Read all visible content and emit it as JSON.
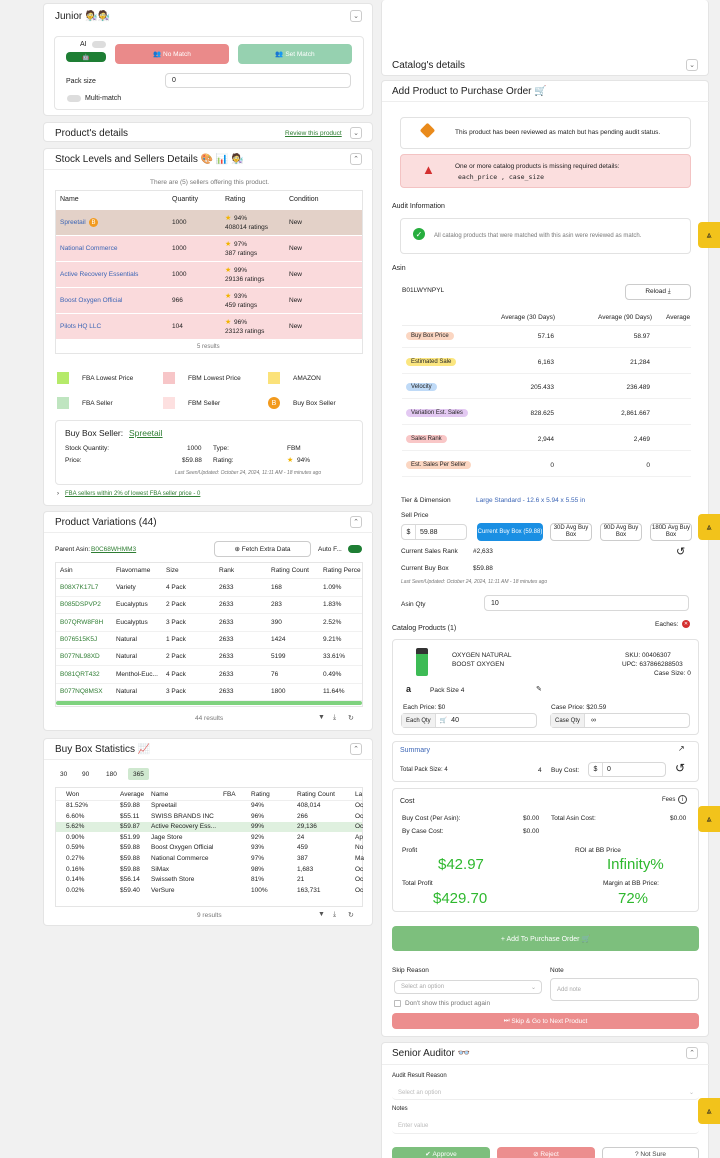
{
  "junior": {
    "title": "Junior 🧑‍🔬🧑‍🔬",
    "ai_label": "AI",
    "no_match": "No Match",
    "set_match": "Set Match",
    "pack_size_label": "Pack size",
    "pack_size_value": "0",
    "multi_match": "Multi-match"
  },
  "product_details": {
    "title": "Product's details",
    "review_link": "Review this product"
  },
  "stock": {
    "title": "Stock Levels and Sellers Details 🎨 📊 🧑‍🔬",
    "summary": "There are (5) sellers offering this product.",
    "headers": [
      "Name",
      "Quantity",
      "Rating",
      "Condition"
    ],
    "rows": [
      {
        "name": "Spreetail",
        "qty": "1000",
        "pct": "94%",
        "ratings": "408014 ratings",
        "cond": "New",
        "color": "#e3d1c8"
      },
      {
        "name": "National Commerce",
        "qty": "1000",
        "pct": "97%",
        "ratings": "387 ratings",
        "cond": "New",
        "color": "#fadadc"
      },
      {
        "name": "Active Recovery Essentials",
        "qty": "1000",
        "pct": "99%",
        "ratings": "29136 ratings",
        "cond": "New",
        "color": "#fadadc"
      },
      {
        "name": "Boost Oxygen Official",
        "qty": "966",
        "pct": "93%",
        "ratings": "459 ratings",
        "cond": "New",
        "color": "#fadadc"
      },
      {
        "name": "Pilots HQ LLC",
        "qty": "104",
        "pct": "96%",
        "ratings": "23123 ratings",
        "cond": "New",
        "color": "#fadadc"
      }
    ],
    "results": "5 results",
    "legend": [
      {
        "label": "FBA Lowest Price",
        "color": "#b5ea6a"
      },
      {
        "label": "FBM Lowest Price",
        "color": "#f7c6c8"
      },
      {
        "label": "AMAZON",
        "color": "#fbe27a"
      },
      {
        "label": "FBA Seller",
        "color": "#bfe5c0"
      },
      {
        "label": "FBM Seller",
        "color": "#fde0e0"
      },
      {
        "label": "Buy Box Seller",
        "color": "#f29a1e"
      }
    ],
    "buybox": {
      "label": "Buy Box Seller:",
      "seller": "Spreetail",
      "stock_label": "Stock Quantity:",
      "stock": "1000",
      "type_label": "Type:",
      "type": "FBM",
      "price_label": "Price:",
      "price": "$59.88",
      "rating_label": "Rating:",
      "rating": "94%",
      "last_seen": "Last Seen/Updated: October 24, 2024, 11:11 AM - 18 minutes ago"
    },
    "fba_link": "FBA sellers within 2% of lowest FBA seller price - 0"
  },
  "variations": {
    "title": "Product Variations (44)",
    "parent_label": "Parent Asin:",
    "parent": "B0C68WHMM3",
    "fetch": "Fetch Extra Data",
    "auto": "Auto F...",
    "headers": [
      "Asin",
      "Flavorname",
      "Size",
      "Rank",
      "Rating Count",
      "Rating Perce"
    ],
    "rows": [
      [
        "B08X7K17L7",
        "Variety",
        "4 Pack",
        "2633",
        "168",
        "1.09%"
      ],
      [
        "B085DSPVP2",
        "Eucalyptus",
        "2 Pack",
        "2633",
        "283",
        "1.83%"
      ],
      [
        "B07QRW8F8H",
        "Eucalyptus",
        "3 Pack",
        "2633",
        "390",
        "2.52%"
      ],
      [
        "B076515K5J",
        "Natural",
        "1 Pack",
        "2633",
        "1424",
        "9.21%"
      ],
      [
        "B077NL98XD",
        "Natural",
        "2 Pack",
        "2633",
        "5199",
        "33.61%"
      ],
      [
        "B081QRT432",
        "Menthol-Euc...",
        "4 Pack",
        "2633",
        "76",
        "0.49%"
      ],
      [
        "B077NQ8MSX",
        "Natural",
        "3 Pack",
        "2633",
        "1800",
        "11.64%"
      ]
    ],
    "results": "44 results"
  },
  "buybox_stats": {
    "title": "Buy Box Statistics 📈",
    "tabs": [
      "30",
      "90",
      "180",
      "365"
    ],
    "headers": [
      "Won",
      "Average",
      "Name",
      "FBA",
      "Rating",
      "Rating Count",
      "La"
    ],
    "rows": [
      [
        "81.52%",
        "$59.88",
        "Spreetail",
        "",
        "94%",
        "408,014",
        "Oc"
      ],
      [
        "6.60%",
        "$55.11",
        "SWISS BRANDS INC",
        "",
        "96%",
        "266",
        "Oc"
      ],
      [
        "5.62%",
        "$59.87",
        "Active Recovery Ess...",
        "",
        "99%",
        "29,136",
        "Oc"
      ],
      [
        "0.90%",
        "$51.99",
        "Jage Store",
        "",
        "92%",
        "24",
        "Ap"
      ],
      [
        "0.59%",
        "$59.88",
        "Boost Oxygen Official",
        "",
        "93%",
        "459",
        "No"
      ],
      [
        "0.27%",
        "$59.88",
        "National Commerce",
        "",
        "97%",
        "387",
        "Ma"
      ],
      [
        "0.16%",
        "$59.88",
        "SiMax",
        "",
        "98%",
        "1,683",
        "Oc"
      ],
      [
        "0.14%",
        "$56.14",
        "Swisseth Store",
        "",
        "81%",
        "21",
        "Oc"
      ],
      [
        "0.02%",
        "$59.40",
        "VerSure",
        "",
        "100%",
        "163,731",
        "Oc"
      ]
    ],
    "results": "9 results"
  },
  "catalog": {
    "title": "Catalog's details"
  },
  "add": {
    "title": "Add Product to Purchase Order 🛒",
    "warn1": "This product has been reviewed as match but has pending audit status.",
    "warn2": "One or more catalog products is missing required details:",
    "warn2_fields": "each_price , case_size",
    "audit_label": "Audit Information",
    "audit_text": "All catalog products that were matched with this asin were reviewed as match.",
    "asin_label": "Asin",
    "asin": "B01LWYNPYL",
    "reload": "Reload ⤓",
    "metrics_headers": [
      "Average (30 Days)",
      "Average (90 Days)",
      "Average"
    ],
    "metrics": [
      {
        "label": "Buy Box Price",
        "v30": "57.16",
        "v90": "58.97",
        "color": "#fbd6c2"
      },
      {
        "label": "Estimated Sale",
        "v30": "6,163",
        "v90": "21,284",
        "color": "#fbe680"
      },
      {
        "label": "Velocity",
        "v30": "205.433",
        "v90": "236.489",
        "color": "#bfdaf7"
      },
      {
        "label": "Variation Est. Sales",
        "v30": "828.625",
        "v90": "2,861.667",
        "color": "#e3c9f2"
      },
      {
        "label": "Sales Rank",
        "v30": "2,944",
        "v90": "2,469",
        "color": "#f9c7c7"
      },
      {
        "label": "Est. Sales Per Seller",
        "v30": "0",
        "v90": "0",
        "color": "#fbd6c2"
      }
    ],
    "tier_label": "Tier & Dimension",
    "tier": "Large Standard - 12.6 x 5.94 x 5.55 in",
    "sell_price_label": "Sell Price",
    "sell_currency": "$",
    "sell_price": "59.88",
    "current_bb_btn": "Current Buy Box (59.88)",
    "avg30": "30D Avg Buy Box",
    "avg90": "90D Avg Buy Box",
    "avg180": "180D Avg Buy Box",
    "rank_label": "Current Sales Rank",
    "rank": "#2,633",
    "cbb_label": "Current Buy Box",
    "cbb": "$59.88",
    "last_seen": "Last Seen/Updated: October 24, 2024, 11:11 AM - 18 minutes ago",
    "qty_label": "Asin Qty",
    "qty": "10",
    "catalog_label": "Catalog Products (1)",
    "eaches": "Eaches:",
    "product_name": "OXYGEN NATURAL",
    "brand": "BOOST OXYGEN",
    "sku": "SKU: 00406307",
    "upc": "UPC: 637866288503",
    "case_size": "Case Size: 0",
    "pack_size": "Pack Size 4",
    "each_price": "Each Price: $0",
    "case_price": "Case Price: $20.59",
    "each_qty_label": "Each Qty",
    "each_qty": "40",
    "case_qty_label": "Case Qty",
    "case_qty": "∞",
    "summary_label": "Summary",
    "total_pack": "Total Pack Size: 4",
    "total_pack_val": "4",
    "buy_cost_label": "Buy Cost:",
    "buy_cost": "0",
    "cost_label": "Cost",
    "fees": "Fees",
    "buy_cost_asin_label": "Buy Cost (Per Asin):",
    "buy_cost_asin": "$0.00",
    "total_asin_label": "Total Asin Cost:",
    "total_asin": "$0.00",
    "by_case_label": "By Case Cost:",
    "by_case": "$0.00",
    "profit_label": "Profit",
    "profit": "$42.97",
    "roi_label": "ROI at BB Price",
    "roi": "Infinity%",
    "total_profit_label": "Total Profit",
    "total_profit": "$429.70",
    "margin_label": "Margin at BB Price:",
    "margin": "72%",
    "add_btn": "+ Add To Purchase Order 🛒",
    "skip_reason_label": "Skip Reason",
    "skip_placeholder": "Select an option",
    "note_label": "Note",
    "note_placeholder": "Add note",
    "dont_show": "Don't show this product again",
    "skip_btn": "Skip & Go to Next Product"
  },
  "senior": {
    "title": "Senior Auditor 👓",
    "reason_label": "Audit Result Reason",
    "reason_placeholder": "Select an option",
    "notes_label": "Notes",
    "notes_placeholder": "Enter value",
    "approve": "Approve",
    "reject": "Reject",
    "not_sure": "Not Sure"
  }
}
